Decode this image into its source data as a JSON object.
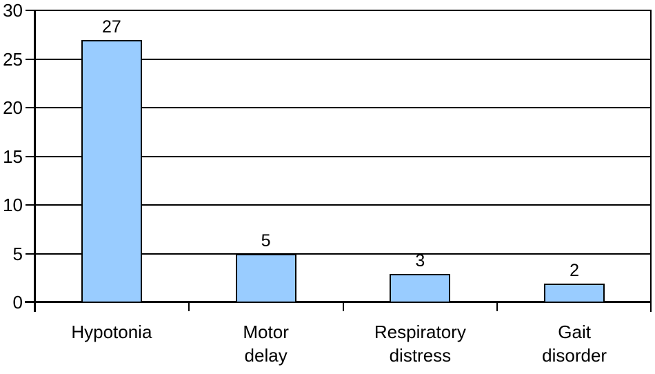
{
  "chart_data": {
    "type": "bar",
    "title": "",
    "xlabel": "",
    "ylabel": "",
    "categories": [
      {
        "lines": [
          "Hypotonia"
        ]
      },
      {
        "lines": [
          "Motor",
          "delay"
        ]
      },
      {
        "lines": [
          "Respiratory",
          "distress"
        ]
      },
      {
        "lines": [
          "Gait",
          "disorder"
        ]
      }
    ],
    "values": [
      27,
      5,
      3,
      2
    ],
    "value_labels": [
      "27",
      "5",
      "3",
      "2"
    ],
    "ylim": [
      0,
      30
    ],
    "ytick_step": 5,
    "ytick_labels": [
      "0",
      "5",
      "10",
      "15",
      "20",
      "25",
      "30"
    ],
    "grid": true,
    "legend": "none",
    "colors": {
      "bar_fill": "#99CCFF",
      "bar_border": "#000000",
      "axis_line": "#000000",
      "grid_line": "#000000",
      "text": "#000000",
      "background": "#FFFFFF"
    }
  }
}
